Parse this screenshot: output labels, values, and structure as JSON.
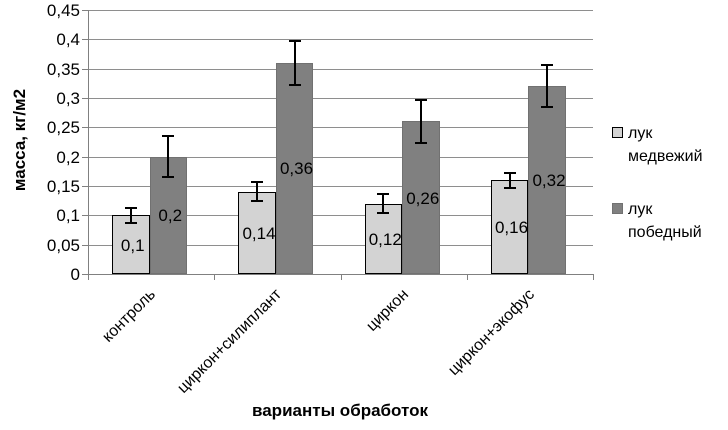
{
  "chart_data": {
    "type": "bar",
    "title": "",
    "categories": [
      "контроль",
      "циркон+силиплант",
      "циркон",
      "циркон+экофус"
    ],
    "series": [
      {
        "name": "лук медвежий",
        "legend_lines": [
          "лук",
          "медвежий"
        ],
        "values": [
          0.1,
          0.14,
          0.12,
          0.16
        ],
        "errors": [
          0.013,
          0.016,
          0.016,
          0.013
        ],
        "data_labels": [
          "0,1",
          "0,14",
          "0,12",
          "0,16"
        ],
        "fill": "#d3d3d3",
        "border": "#000000"
      },
      {
        "name": "лук победный",
        "legend_lines": [
          "лук",
          "победный"
        ],
        "values": [
          0.2,
          0.36,
          0.26,
          0.32
        ],
        "errors": [
          0.035,
          0.037,
          0.037,
          0.036
        ],
        "data_labels": [
          "0,2",
          "0,36",
          "0,26",
          "0,32"
        ],
        "fill": "#808080",
        "border": "#717171"
      }
    ],
    "xlabel": "варианты обработок",
    "ylabel": "масса, кг/м2",
    "ylim": [
      0,
      0.45
    ],
    "ytick_step": 0.05,
    "ytick_labels": [
      "0",
      "0,05",
      "0,1",
      "0,15",
      "0,2",
      "0,25",
      "0,3",
      "0,35",
      "0,4",
      "0,45"
    ],
    "grid": true,
    "legend_position": "right",
    "decimal_separator": ","
  },
  "colors": {
    "background": "#ffffff",
    "gridline": "#8e8e8e",
    "axis": "#808080",
    "text": "#000000",
    "error_bar": "#000000"
  }
}
